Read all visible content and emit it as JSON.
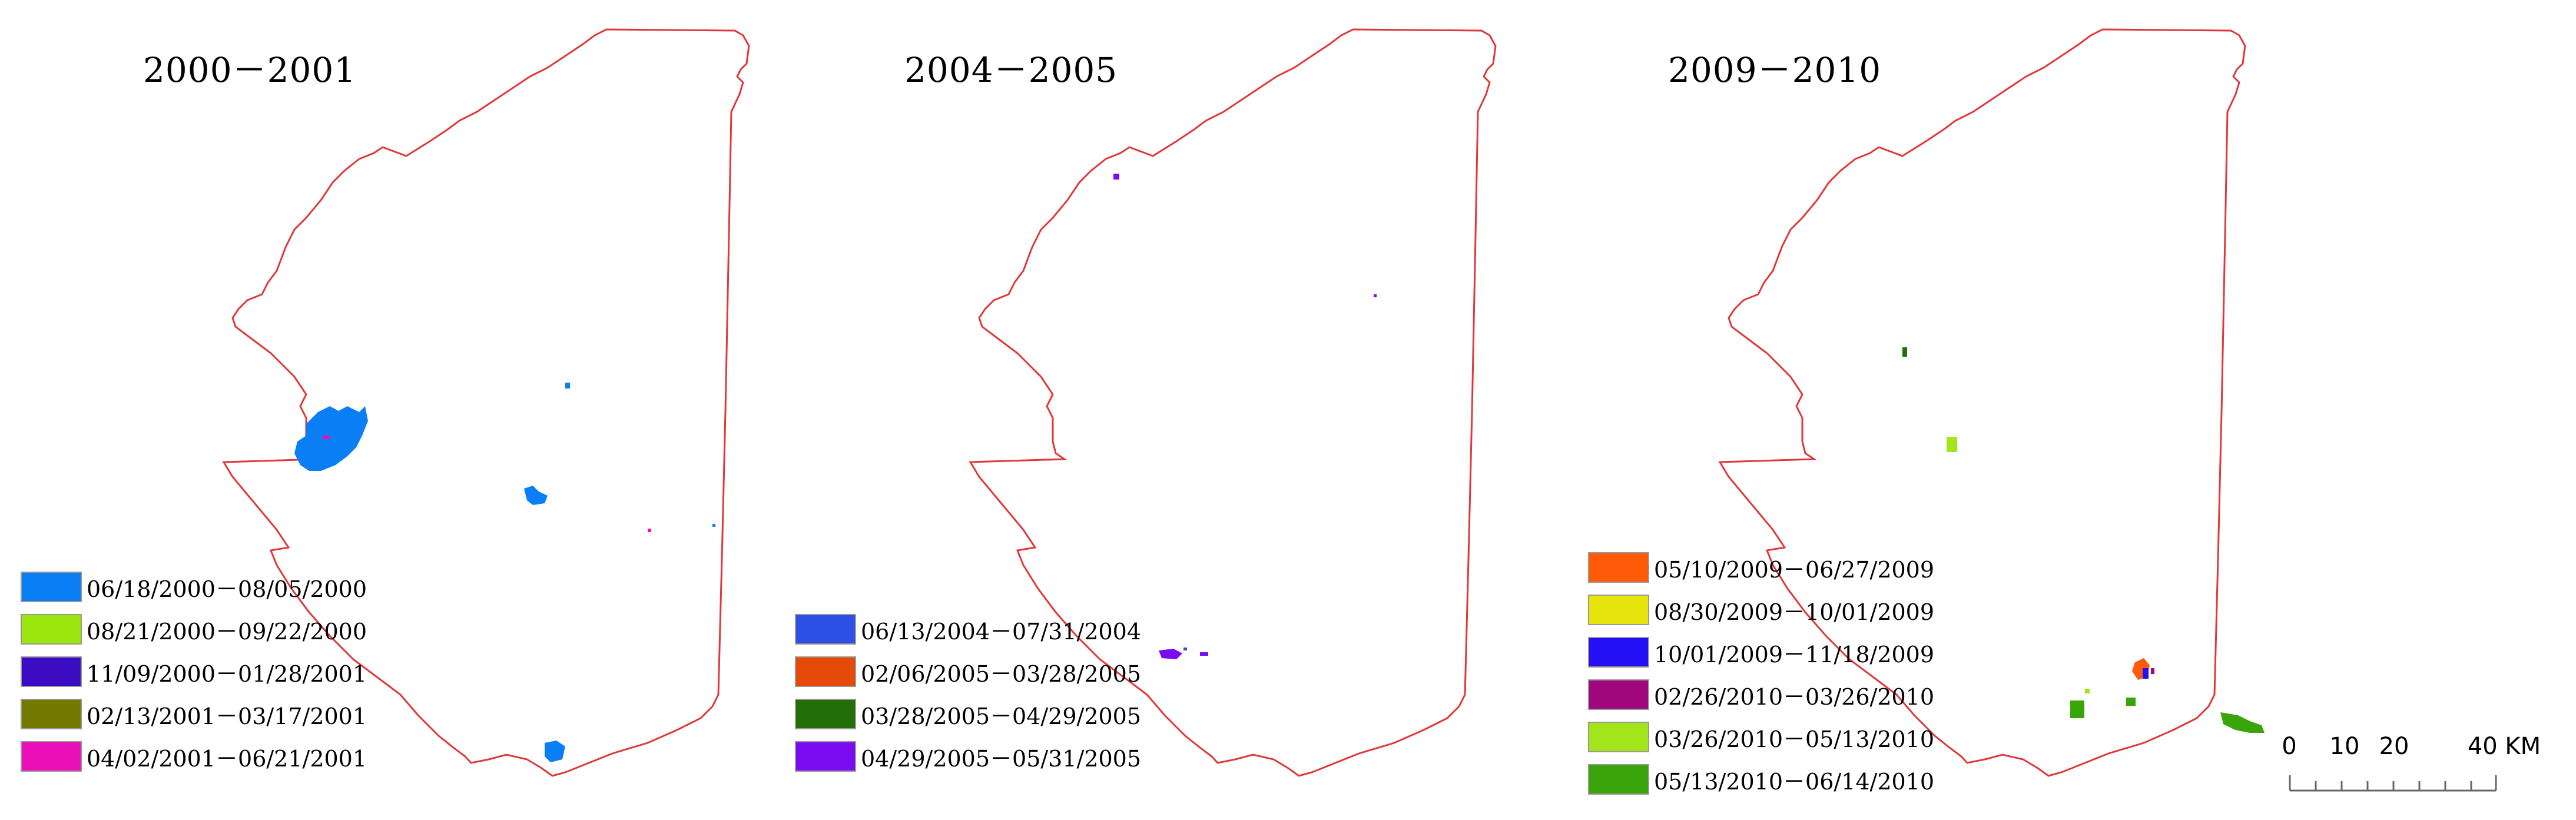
{
  "panels": [
    {
      "title": "2000－2001",
      "legend": [
        {
          "label": "06/18/2000－08/05/2000",
          "color": "#0a7ef5"
        },
        {
          "label": "08/21/2000－09/22/2000",
          "color": "#9be60c"
        },
        {
          "label": "11/09/2000－01/28/2001",
          "color": "#3b0cc2"
        },
        {
          "label": "02/13/2001－03/17/2001",
          "color": "#747a00"
        },
        {
          "label": "04/02/2001－06/21/2001",
          "color": "#ea0fb8"
        }
      ]
    },
    {
      "title": "2004－2005",
      "legend": [
        {
          "label": "06/13/2004－07/31/2004",
          "color": "#2d4fe3"
        },
        {
          "label": "02/06/2005－03/28/2005",
          "color": "#e54a09"
        },
        {
          "label": "03/28/2005－04/29/2005",
          "color": "#246e08"
        },
        {
          "label": "04/29/2005－05/31/2005",
          "color": "#7a0cf2"
        }
      ]
    },
    {
      "title": "2009－2010",
      "legend": [
        {
          "label": "05/10/2009－06/27/2009",
          "color": "#ff5a07"
        },
        {
          "label": "08/30/2009－10/01/2009",
          "color": "#e6e40a"
        },
        {
          "label": "10/01/2009－11/18/2009",
          "color": "#2410f5"
        },
        {
          "label": "02/26/2010－03/26/2010",
          "color": "#a2087e"
        },
        {
          "label": "03/26/2010－05/13/2010",
          "color": "#a2e51a"
        },
        {
          "label": "05/13/2010－06/14/2010",
          "color": "#3aa50b"
        }
      ]
    }
  ],
  "boundary_color": "#e0383a",
  "scale_bar": {
    "ticks": [
      "0",
      "10",
      "20",
      "40 KM"
    ]
  }
}
